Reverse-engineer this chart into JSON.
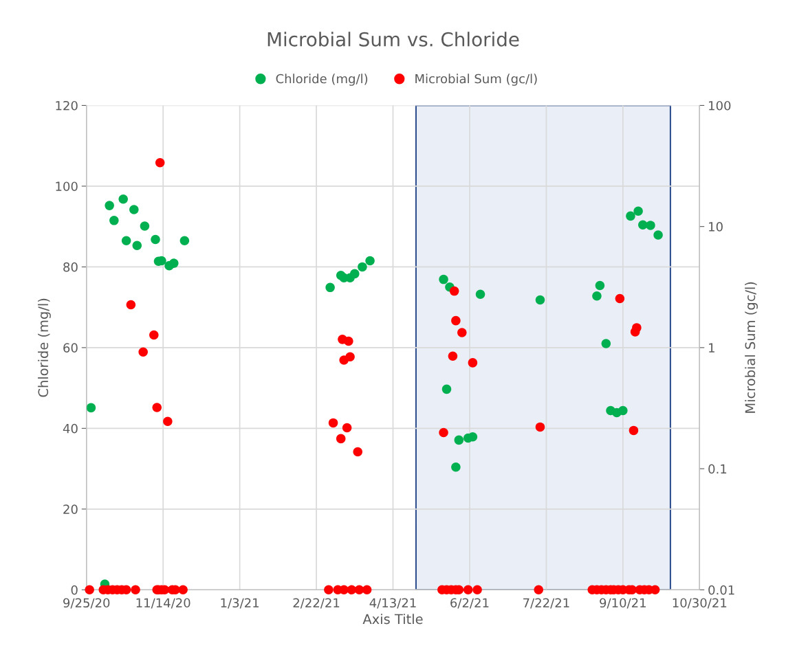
{
  "chart_data": {
    "type": "scatter",
    "title": "Microbial Sum vs. Chloride",
    "xlabel": "Axis Title",
    "ylabel": "Chloride (mg/l)",
    "y2label": "Microbial Sum (gc/l)",
    "xlim": [
      "2020-09-25",
      "2021-10-30"
    ],
    "xticks": [
      {
        "value": "2020-09-25",
        "label": "9/25/20"
      },
      {
        "value": "2020-11-14",
        "label": "11/14/20"
      },
      {
        "value": "2021-01-03",
        "label": "1/3/21"
      },
      {
        "value": "2021-02-22",
        "label": "2/22/21"
      },
      {
        "value": "2021-04-13",
        "label": "4/13/21"
      },
      {
        "value": "2021-06-02",
        "label": "6/2/21"
      },
      {
        "value": "2021-07-22",
        "label": "7/22/21"
      },
      {
        "value": "2021-09-10",
        "label": "9/10/21"
      },
      {
        "value": "2021-10-30",
        "label": "10/30/21"
      }
    ],
    "ylim": [
      0,
      120
    ],
    "yticks": [
      0,
      20,
      40,
      60,
      80,
      100,
      120
    ],
    "y2lim": [
      0.01,
      100
    ],
    "y2ticks": [
      0.01,
      0.1,
      1,
      10,
      100
    ],
    "log": "y2",
    "grid": true,
    "legend": "top",
    "marker": "circle",
    "bands": [
      {
        "axis": "x",
        "from": "2021-04-28",
        "to": "2021-10-11",
        "color": "#e9eef7"
      }
    ],
    "series": [
      {
        "name": "Chloride (mg/l)",
        "color": "#00b050",
        "x": [
          "2020-09-28",
          "2020-10-07",
          "2020-10-10",
          "2020-10-13",
          "2020-10-19",
          "2020-10-21",
          "2020-10-26",
          "2020-10-28",
          "2020-11-02",
          "2020-11-09",
          "2020-11-11",
          "2020-11-13",
          "2020-11-18",
          "2020-11-21",
          "2020-11-28",
          "2021-03-03",
          "2021-03-10",
          "2021-03-12",
          "2021-03-16",
          "2021-03-19",
          "2021-03-24",
          "2021-03-29",
          "2021-05-16",
          "2021-05-20",
          "2021-05-18",
          "2021-05-26",
          "2021-06-01",
          "2021-06-04",
          "2021-05-24",
          "2021-06-09",
          "2021-07-18",
          "2021-08-24",
          "2021-08-26",
          "2021-08-30",
          "2021-09-02",
          "2021-09-06",
          "2021-09-10",
          "2021-09-15",
          "2021-09-20",
          "2021-09-23",
          "2021-09-28",
          "2021-10-03"
        ],
        "values": [
          45.1,
          1.4,
          95.2,
          91.5,
          96.8,
          86.5,
          94.2,
          85.3,
          90.1,
          86.8,
          81.4,
          81.5,
          80.3,
          80.9,
          86.5,
          74.9,
          77.9,
          77.3,
          77.3,
          78.3,
          80.0,
          81.5,
          76.9,
          75.0,
          49.7,
          37.1,
          37.6,
          37.9,
          30.4,
          73.2,
          71.8,
          72.8,
          75.4,
          61.0,
          44.4,
          43.9,
          44.4,
          92.6,
          93.8,
          90.4,
          90.3,
          87.9
        ]
      },
      {
        "name": "Microbial Sum (gc/l)",
        "color": "#ff0000",
        "axis": "y2",
        "x": [
          "2020-11-12",
          "2020-10-24",
          "2020-11-08",
          "2020-11-01",
          "2020-11-10",
          "2020-11-17",
          "2021-03-11",
          "2021-03-15",
          "2021-03-12",
          "2021-03-16",
          "2021-03-05",
          "2021-03-14",
          "2021-03-10",
          "2021-03-21",
          "2021-05-23",
          "2021-05-24",
          "2021-05-28",
          "2021-05-22",
          "2021-06-04",
          "2021-05-16",
          "2021-07-18",
          "2021-09-08",
          "2021-09-19",
          "2021-09-18",
          "2021-09-17",
          "2020-09-27",
          "2020-10-06",
          "2020-10-09",
          "2020-10-12",
          "2020-10-15",
          "2020-10-18",
          "2020-10-21",
          "2020-10-27",
          "2020-11-10",
          "2020-11-11",
          "2020-11-13",
          "2020-11-15",
          "2020-11-20",
          "2020-11-22",
          "2020-11-27",
          "2021-03-02",
          "2021-03-08",
          "2021-03-12",
          "2021-03-17",
          "2021-03-22",
          "2021-03-27",
          "2021-05-15",
          "2021-05-18",
          "2021-05-21",
          "2021-05-24",
          "2021-05-26",
          "2021-06-01",
          "2021-06-07",
          "2021-07-17",
          "2021-08-21",
          "2021-08-24",
          "2021-08-27",
          "2021-08-30",
          "2021-09-02",
          "2021-09-04",
          "2021-09-07",
          "2021-09-10",
          "2021-09-14",
          "2021-09-16",
          "2021-09-21",
          "2021-09-24",
          "2021-09-27",
          "2021-10-01"
        ],
        "values": [
          33.7,
          2.26,
          1.27,
          0.92,
          0.32,
          0.246,
          1.17,
          1.13,
          0.79,
          0.84,
          0.239,
          0.218,
          0.177,
          0.138,
          2.93,
          1.67,
          1.33,
          0.85,
          0.75,
          0.199,
          0.221,
          2.54,
          1.46,
          1.35,
          0.207,
          0.01,
          0.01,
          0.01,
          0.01,
          0.01,
          0.01,
          0.01,
          0.01,
          0.01,
          0.01,
          0.01,
          0.01,
          0.01,
          0.01,
          0.01,
          0.01,
          0.01,
          0.01,
          0.01,
          0.01,
          0.01,
          0.01,
          0.01,
          0.01,
          0.01,
          0.01,
          0.01,
          0.01,
          0.01,
          0.01,
          0.01,
          0.01,
          0.01,
          0.01,
          0.01,
          0.01,
          0.01,
          0.01,
          0.01,
          0.01,
          0.01,
          0.01,
          0.01
        ]
      }
    ]
  }
}
